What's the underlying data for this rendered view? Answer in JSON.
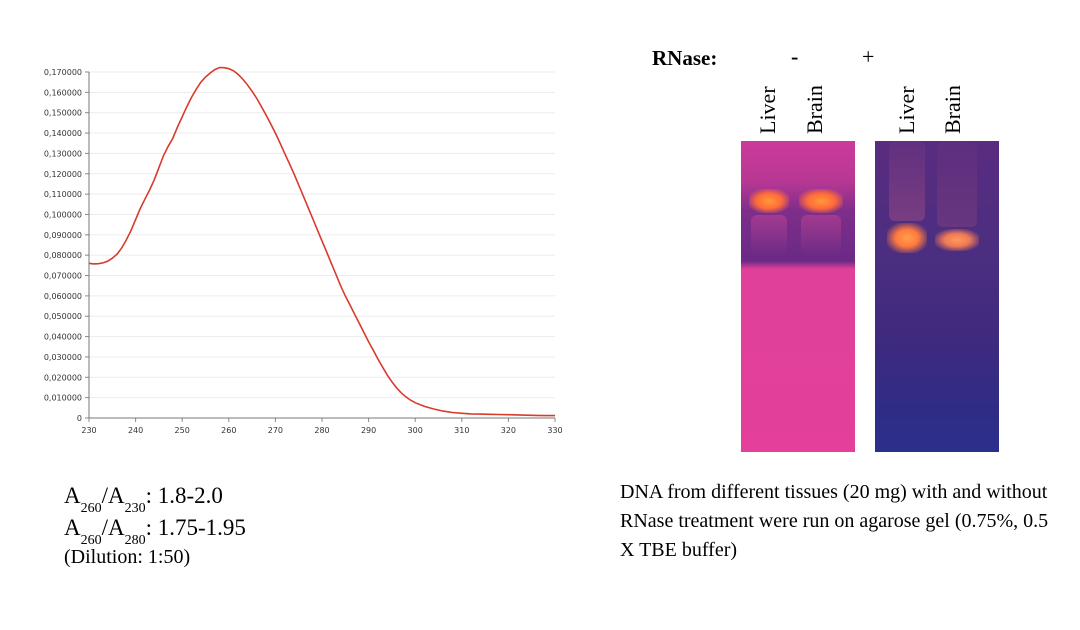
{
  "chart_data": {
    "type": "line",
    "ylim": [
      0,
      0.17
    ],
    "xlim": [
      230,
      330
    ],
    "yticks": [
      "0",
      "0,010000",
      "0,020000",
      "0,030000",
      "0,040000",
      "0,050000",
      "0,060000",
      "0,070000",
      "0,080000",
      "0,090000",
      "0,100000",
      "0,110000",
      "0,120000",
      "0,130000",
      "0,140000",
      "0,150000",
      "0,160000",
      "0,170000"
    ],
    "xticks": [
      "230",
      "240",
      "250",
      "260",
      "270",
      "280",
      "290",
      "300",
      "310",
      "320",
      "330"
    ],
    "grid": true,
    "series": [
      {
        "color": "#d93a2b",
        "x": [
          230,
          231,
          232,
          233,
          234,
          235,
          236,
          237,
          238,
          239,
          240,
          241,
          242,
          243,
          244,
          245,
          246,
          247,
          248,
          249,
          250,
          251,
          252,
          253,
          254,
          255,
          256,
          257,
          258,
          259,
          260,
          261,
          262,
          263,
          264,
          265,
          266,
          267,
          268,
          269,
          270,
          271,
          272,
          273,
          274,
          275,
          276,
          277,
          278,
          279,
          280,
          281,
          282,
          283,
          284,
          285,
          286,
          287,
          288,
          289,
          290,
          291,
          292,
          293,
          294,
          295,
          296,
          297,
          298,
          299,
          300,
          302,
          304,
          306,
          308,
          310,
          312,
          314,
          316,
          318,
          320,
          322,
          324,
          326,
          328,
          330
        ],
        "y": [
          0.076,
          0.0757,
          0.0758,
          0.0762,
          0.077,
          0.0785,
          0.0805,
          0.0835,
          0.0875,
          0.092,
          0.0975,
          0.103,
          0.1075,
          0.112,
          0.117,
          0.123,
          0.129,
          0.1335,
          0.1375,
          0.143,
          0.148,
          0.153,
          0.1575,
          0.1615,
          0.165,
          0.1675,
          0.1695,
          0.1712,
          0.1722,
          0.1721,
          0.1716,
          0.1706,
          0.1688,
          0.1665,
          0.1637,
          0.1605,
          0.157,
          0.153,
          0.1488,
          0.1445,
          0.14,
          0.135,
          0.13,
          0.125,
          0.12,
          0.1145,
          0.109,
          0.1035,
          0.098,
          0.0925,
          0.087,
          0.0815,
          0.076,
          0.0705,
          0.065,
          0.06,
          0.0555,
          0.051,
          0.0465,
          0.042,
          0.0375,
          0.0333,
          0.029,
          0.025,
          0.0212,
          0.0178,
          0.0148,
          0.0124,
          0.0104,
          0.0088,
          0.0075,
          0.0057,
          0.0044,
          0.0034,
          0.0027,
          0.0023,
          0.002,
          0.0019,
          0.0018,
          0.0017,
          0.0016,
          0.0015,
          0.0014,
          0.0013,
          0.0012,
          0.0012
        ]
      }
    ]
  },
  "ratios": {
    "r1": {
      "a": "A",
      "s1": "260",
      "slash": "/A",
      "s2": "230",
      "value": ": 1.8-2.0"
    },
    "r2": {
      "a": "A",
      "s1": "260",
      "slash": "/A",
      "s2": "280",
      "value": ": 1.75-1.95"
    },
    "dilution": "(Dilution: 1:50)"
  },
  "gel": {
    "rnase_label": "RNase:",
    "minus": "-",
    "plus": "+",
    "lanes": [
      "Liver",
      "Brain",
      "Liver",
      "Brain"
    ]
  },
  "caption": "DNA from different tissues (20 mg) with and without RNase treatment were run on agarose gel (0.75%, 0.5 X TBE buffer)"
}
